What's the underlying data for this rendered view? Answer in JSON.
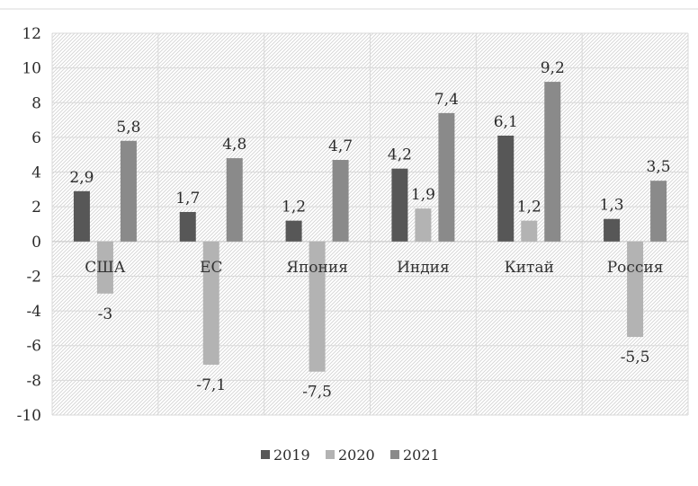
{
  "chart_data": {
    "type": "bar",
    "categories": [
      "США",
      "ЕС",
      "Япония",
      "Индия",
      "Китай",
      "Россия"
    ],
    "series": [
      {
        "name": "2019",
        "values": [
          2.9,
          1.7,
          1.2,
          4.2,
          6.1,
          1.3
        ],
        "labels": [
          "2,9",
          "1,7",
          "1,2",
          "4,2",
          "6,1",
          "1,3"
        ],
        "color": "#575757"
      },
      {
        "name": "2020",
        "values": [
          -3,
          -7.1,
          -7.5,
          1.9,
          1.2,
          -5.5
        ],
        "labels": [
          "-3",
          "-7,1",
          "-7,5",
          "1,9",
          "1,2",
          "-5,5"
        ],
        "color": "#b3b3b3"
      },
      {
        "name": "2021",
        "values": [
          5.8,
          4.8,
          4.7,
          7.4,
          9.2,
          3.5
        ],
        "labels": [
          "5,8",
          "4,8",
          "4,7",
          "7,4",
          "9,2",
          "3,5"
        ],
        "color": "#8a8a8a"
      }
    ],
    "ylim": [
      -10,
      12
    ],
    "yticks": [
      "12",
      "10",
      "8",
      "6",
      "4",
      "2",
      "0",
      "-2",
      "-4",
      "-6",
      "-8",
      "-10"
    ],
    "grid": true,
    "legend_position": "bottom",
    "title": "",
    "xlabel": "",
    "ylabel": ""
  }
}
